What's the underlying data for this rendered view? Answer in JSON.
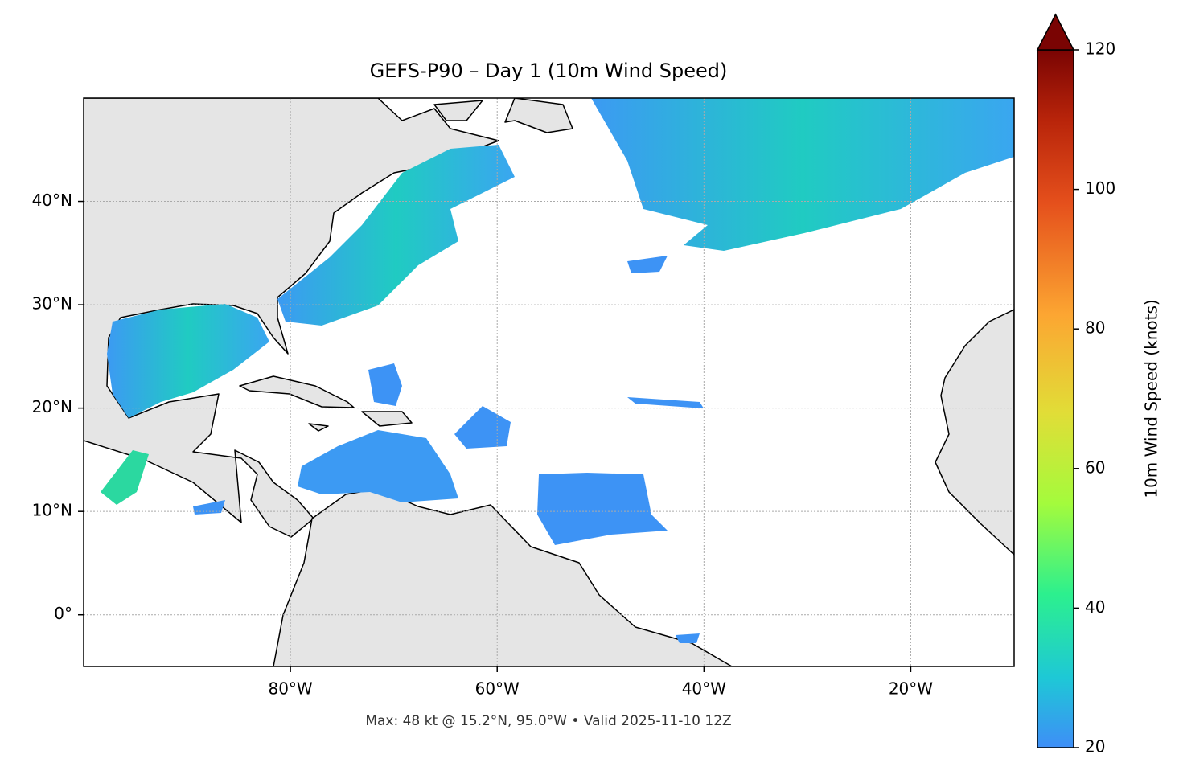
{
  "title": "GEFS-P90 – Day 1 (10m Wind Speed)",
  "footer": "Max: 48 kt @ 15.2°N, 95.0°W • Valid 2025-11-10 12Z",
  "map": {
    "type": "map",
    "lonlim": [
      -100,
      -10
    ],
    "latlim": [
      -5,
      50
    ],
    "grid": true,
    "xticks": [
      {
        "value": -80,
        "label": "80°W"
      },
      {
        "value": -60,
        "label": "60°W"
      },
      {
        "value": -40,
        "label": "40°W"
      },
      {
        "value": -20,
        "label": "20°W"
      }
    ],
    "yticks": [
      {
        "value": 0,
        "label": "0°"
      },
      {
        "value": 10,
        "label": "10°N"
      },
      {
        "value": 20,
        "label": "20°N"
      },
      {
        "value": 30,
        "label": "30°N"
      },
      {
        "value": 40,
        "label": "40°N"
      }
    ]
  },
  "colorbar": {
    "label": "10m Wind Speed (knots)",
    "lim": [
      20,
      120
    ],
    "ticks": [
      20,
      40,
      60,
      80,
      100,
      120
    ]
  }
}
